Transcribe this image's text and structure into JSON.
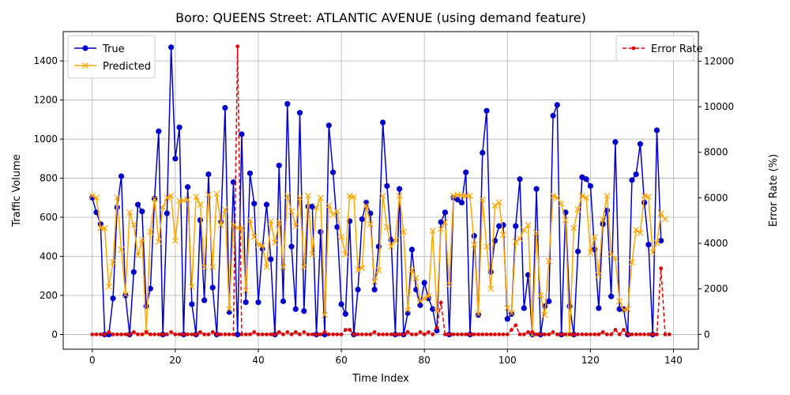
{
  "chart_data": {
    "type": "line",
    "title": "Boro: QUEENS Street: ATLANTIC AVENUE (using demand feature)",
    "xlabel": "Time Index",
    "ylabel_left": "Traffic Volume",
    "ylabel_right": "Error Rate (%)",
    "xlim": [
      -7,
      146
    ],
    "ylim_left": [
      -75,
      1550
    ],
    "ylim_right": [
      -650,
      13300
    ],
    "xticks": [
      0,
      20,
      40,
      60,
      80,
      100,
      120,
      140
    ],
    "yticks_left": [
      0,
      200,
      400,
      600,
      800,
      1000,
      1200,
      1400
    ],
    "yticks_right": [
      0,
      2000,
      4000,
      6000,
      8000,
      10000,
      12000
    ],
    "grid": true,
    "legend_left": "top-left",
    "legend_right": "top-right",
    "colors": {
      "true": "#0000cc",
      "predicted": "#ffa500",
      "error": "#e00000"
    },
    "series": [
      {
        "name": "True",
        "axis": "left",
        "marker": "circle",
        "values": [
          700,
          625,
          565,
          0,
          0,
          185,
          650,
          810,
          200,
          0,
          320,
          665,
          630,
          145,
          235,
          695,
          1040,
          0,
          620,
          1470,
          900,
          1060,
          0,
          755,
          155,
          0,
          585,
          175,
          820,
          240,
          0,
          575,
          1160,
          115,
          780,
          0,
          1025,
          165,
          825,
          670,
          165,
          440,
          665,
          385,
          0,
          865,
          170,
          1180,
          450,
          130,
          1135,
          120,
          655,
          655,
          0,
          525,
          0,
          1070,
          830,
          550,
          155,
          105,
          580,
          0,
          230,
          590,
          675,
          620,
          230,
          450,
          1085,
          760,
          485,
          0,
          745,
          0,
          110,
          435,
          230,
          150,
          265,
          185,
          130,
          20,
          575,
          625,
          0,
          700,
          690,
          675,
          830,
          0,
          505,
          100,
          930,
          1145,
          320,
          480,
          555,
          560,
          80,
          105,
          555,
          795,
          135,
          305,
          0,
          745,
          0,
          145,
          170,
          1120,
          1175,
          0,
          625,
          145,
          0,
          425,
          805,
          795,
          760,
          435,
          135,
          565,
          635,
          195,
          985,
          130,
          130,
          0,
          790,
          820,
          975,
          675,
          460,
          0,
          1045,
          480
        ]
      },
      {
        "name": "Predicted",
        "axis": "left",
        "marker": "x",
        "values": [
          710,
          700,
          545,
          545,
          245,
          370,
          700,
          435,
          205,
          625,
          560,
          405,
          485,
          10,
          525,
          695,
          475,
          650,
          700,
          710,
          480,
          685,
          685,
          690,
          245,
          705,
          665,
          345,
          715,
          345,
          720,
          560,
          640,
          130,
          560,
          545,
          545,
          225,
          585,
          500,
          460,
          455,
          345,
          580,
          470,
          575,
          345,
          710,
          630,
          555,
          700,
          345,
          710,
          410,
          650,
          700,
          100,
          660,
          615,
          630,
          500,
          410,
          710,
          705,
          330,
          340,
          660,
          565,
          270,
          330,
          710,
          550,
          450,
          480,
          710,
          525,
          125,
          330,
          290,
          170,
          185,
          195,
          530,
          120,
          540,
          575,
          255,
          710,
          715,
          710,
          710,
          710,
          460,
          105,
          690,
          450,
          235,
          660,
          675,
          510,
          135,
          110,
          475,
          490,
          535,
          560,
          0,
          520,
          200,
          100,
          375,
          710,
          700,
          670,
          585,
          0,
          545,
          640,
          710,
          700,
          420,
          500,
          305,
          590,
          710,
          410,
          390,
          170,
          125,
          130,
          370,
          535,
          520,
          710,
          705,
          420,
          470,
          620,
          590
        ]
      },
      {
        "name": "Error Rate",
        "axis": "right",
        "marker": "dot",
        "linestyle": "dashed",
        "values": [
          0,
          0,
          0,
          0,
          100,
          0,
          0,
          0,
          0,
          0,
          100,
          0,
          0,
          100,
          0,
          0,
          0,
          0,
          0,
          100,
          0,
          0,
          0,
          0,
          0,
          0,
          100,
          0,
          0,
          100,
          0,
          0,
          0,
          0,
          0,
          12650,
          0,
          0,
          0,
          100,
          0,
          0,
          0,
          0,
          0,
          100,
          0,
          100,
          0,
          100,
          0,
          100,
          0,
          0,
          0,
          0,
          100,
          0,
          0,
          0,
          0,
          200,
          200,
          0,
          0,
          0,
          0,
          0,
          100,
          0,
          0,
          0,
          0,
          0,
          0,
          0,
          100,
          0,
          0,
          100,
          0,
          100,
          0,
          300,
          1400,
          0,
          0,
          0,
          0,
          0,
          0,
          0,
          0,
          0,
          0,
          0,
          0,
          0,
          0,
          0,
          0,
          200,
          400,
          0,
          0,
          100,
          100,
          0,
          0,
          0,
          0,
          100,
          0,
          0,
          0,
          0,
          0,
          0,
          0,
          0,
          0,
          0,
          0,
          100,
          0,
          0,
          200,
          0,
          200,
          0,
          0,
          0,
          0,
          0,
          0,
          0,
          0,
          2900,
          0,
          0
        ]
      }
    ]
  }
}
